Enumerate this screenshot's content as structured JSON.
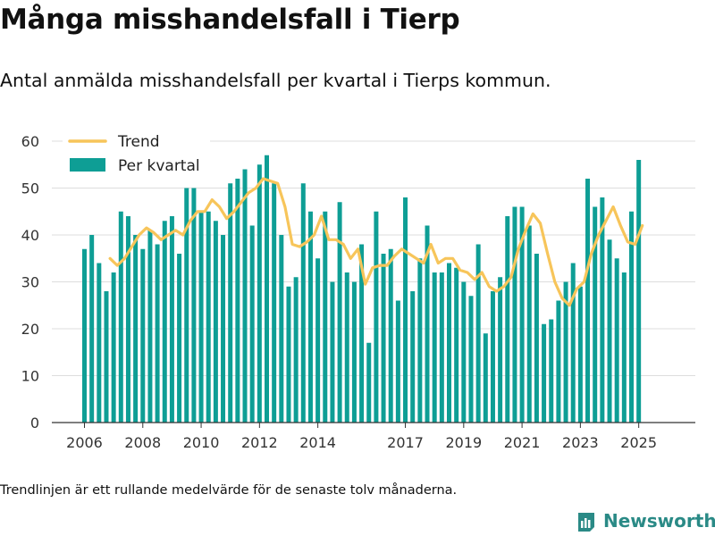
{
  "title": "Många misshandelsfall i Tierp",
  "subtitle": "Antal anmälda misshandelsfall per kvartal i Tierps kommun.",
  "footnote": "Trendlinjen är ett rullande medelvärde för de senaste tolv månaderna.",
  "brand": {
    "name": "Newsworthy",
    "logo_icon": "newsworthy-logo-icon",
    "color": "#2a8a86"
  },
  "colors": {
    "bars": "#0e9e95",
    "trend": "#f7c55a",
    "grid": "#dddddd",
    "axis": "#333333"
  },
  "chart_data": {
    "type": "bar",
    "x_start": "2006-Q1",
    "xlabel": "",
    "ylabel": "",
    "ylim": [
      0,
      60
    ],
    "yticks": [
      0,
      10,
      20,
      30,
      40,
      50,
      60
    ],
    "xticks": [
      "2006",
      "2008",
      "2010",
      "2012",
      "2014",
      "2017",
      "2019",
      "2021",
      "2023",
      "2025"
    ],
    "xtick_quarter_index": [
      0,
      8,
      16,
      24,
      32,
      44,
      52,
      60,
      68,
      76
    ],
    "grid": true,
    "legend": {
      "placement": "top-left",
      "entries": [
        "Trend",
        "Per kvartal"
      ]
    },
    "series": [
      {
        "name": "Per kvartal",
        "type": "bar",
        "values": [
          37,
          40,
          34,
          28,
          32,
          45,
          44,
          40,
          37,
          41,
          38,
          43,
          44,
          36,
          50,
          50,
          45,
          45,
          43,
          40,
          51,
          52,
          54,
          42,
          55,
          57,
          51,
          40,
          29,
          31,
          51,
          45,
          35,
          45,
          30,
          47,
          32,
          30,
          38,
          17,
          45,
          36,
          37,
          26,
          48,
          28,
          35,
          42,
          32,
          32,
          34,
          33,
          30,
          27,
          38,
          19,
          28,
          31,
          44,
          46,
          46,
          42,
          36,
          21,
          22,
          26,
          30,
          34,
          29,
          52,
          46,
          48,
          39,
          35,
          32,
          45,
          56
        ]
      },
      {
        "name": "Trend",
        "type": "line",
        "x_index_start": 3.5,
        "values": [
          35,
          33.5,
          35,
          37.5,
          40,
          41.5,
          40.5,
          39,
          40,
          41,
          40,
          43,
          45,
          45,
          47.5,
          46,
          43.5,
          45,
          47,
          49,
          50,
          52,
          51.5,
          51,
          46,
          38,
          37.5,
          38.5,
          40,
          44,
          39,
          39,
          38,
          35,
          37,
          29.5,
          33,
          33.5,
          33.5,
          35.5,
          37,
          36,
          35,
          34,
          38,
          34,
          35,
          35,
          32.5,
          32,
          30.5,
          32,
          29,
          28,
          29,
          31,
          37,
          41,
          44.5,
          42.5,
          36,
          30,
          26.5,
          25,
          28.5,
          30,
          36,
          40,
          43,
          46,
          42,
          38.5,
          38,
          42
        ]
      }
    ]
  }
}
